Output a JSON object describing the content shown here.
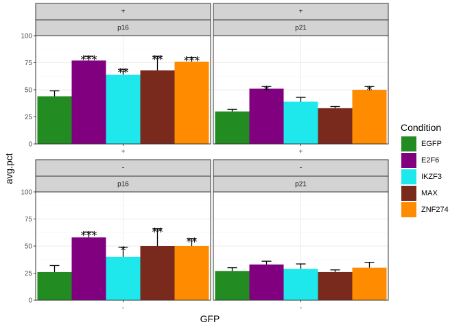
{
  "chart_data": {
    "type": "bar",
    "xlabel": "GFP",
    "ylabel": "avg.pct",
    "ylim": [
      0,
      100
    ],
    "yticks": [
      0,
      25,
      50,
      75,
      100
    ],
    "grid": true,
    "legend": {
      "title": "Condition",
      "placement": "right",
      "entries": [
        {
          "name": "EGFP",
          "color": "#228b22"
        },
        {
          "name": "E2F6",
          "color": "#800080"
        },
        {
          "name": "IKZF3",
          "color": "#1ee8ec"
        },
        {
          "name": "MAX",
          "color": "#7a2a1d"
        },
        {
          "name": "ZNF274",
          "color": "#ff8c00"
        }
      ]
    },
    "categories": [
      "EGFP",
      "E2F6",
      "IKZF3",
      "MAX",
      "ZNF274"
    ],
    "panels": [
      {
        "row": 0,
        "col": 0,
        "gfp": "+",
        "gene": "p16",
        "xtick": "+",
        "values": [
          44,
          77,
          64,
          68,
          76
        ],
        "error": [
          5,
          4,
          5,
          13,
          4
        ],
        "sig": [
          "",
          "***",
          "**",
          "**",
          "***"
        ]
      },
      {
        "row": 0,
        "col": 1,
        "gfp": "+",
        "gene": "p21",
        "xtick": "+",
        "values": [
          30,
          51,
          39,
          33,
          50
        ],
        "error": [
          2,
          2,
          4,
          1.5,
          3
        ],
        "sig": [
          "",
          "*",
          "",
          "",
          "*"
        ]
      },
      {
        "row": 1,
        "col": 0,
        "gfp": "-",
        "gene": "p16",
        "xtick": "-",
        "values": [
          26,
          58,
          40,
          50,
          50
        ],
        "error": [
          6,
          5,
          9,
          16,
          7
        ],
        "sig": [
          "",
          "***",
          "*",
          "**",
          "**"
        ]
      },
      {
        "row": 1,
        "col": 1,
        "gfp": "-",
        "gene": "p21",
        "xtick": "-",
        "values": [
          27,
          33,
          29,
          26,
          30
        ],
        "error": [
          3,
          3,
          4.5,
          2,
          5
        ],
        "sig": [
          "",
          "",
          "",
          "",
          ""
        ]
      }
    ]
  }
}
